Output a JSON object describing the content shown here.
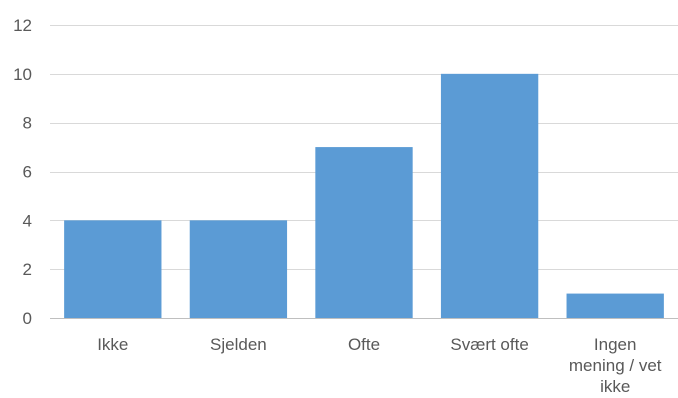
{
  "chart_data": {
    "type": "bar",
    "title": "",
    "xlabel": "",
    "ylabel": "",
    "categories": [
      "Ikke",
      "Sjelden",
      "Ofte",
      "Svært ofte",
      "Ingen mening / vet ikke"
    ],
    "category_label_lines": [
      [
        "Ikke"
      ],
      [
        "Sjelden"
      ],
      [
        "Ofte"
      ],
      [
        "Svært ofte"
      ],
      [
        "Ingen",
        "mening / vet",
        "ikke"
      ]
    ],
    "values": [
      4,
      4,
      7,
      10,
      1
    ],
    "ylim": [
      0,
      12
    ],
    "yticks": [
      0,
      2,
      4,
      6,
      8,
      10,
      12
    ],
    "ytick_labels": [
      "0",
      "2",
      "4",
      "6",
      "8",
      "10",
      "12"
    ],
    "grid": true,
    "legend": "none",
    "colors": {
      "bar": "#5b9bd5",
      "grid": "#d9d9d9",
      "text": "#595959"
    }
  }
}
